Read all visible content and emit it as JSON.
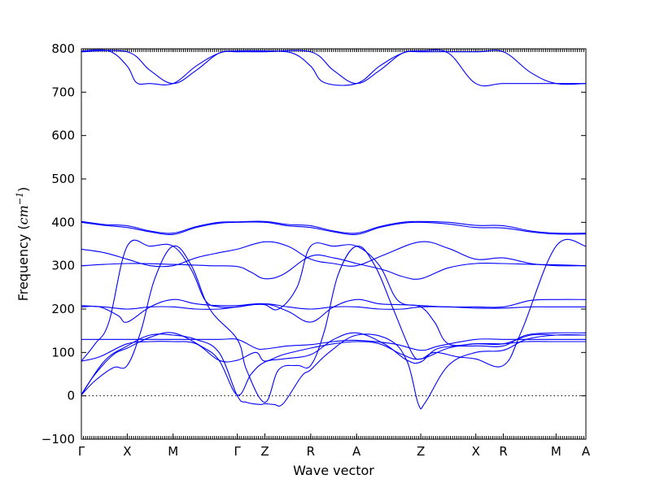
{
  "chart_data": {
    "type": "line",
    "xlabel": "Wave vector",
    "ylabel": "Frequency",
    "ylabel_unit_base": "cm",
    "ylabel_unit_exp": "−1",
    "ylim": [
      -100,
      800
    ],
    "yticks": [
      -100,
      0,
      100,
      200,
      300,
      400,
      500,
      600,
      700,
      800
    ],
    "zero_line": true,
    "grid": false,
    "line_color": "#0000ff",
    "xlim": [
      0,
      11
    ],
    "k_points": [
      {
        "label": "Γ",
        "x": 0
      },
      {
        "label": "X",
        "x": 1
      },
      {
        "label": "M",
        "x": 2
      },
      {
        "label": "Γ",
        "x": 3.4
      },
      {
        "label": "Z",
        "x": 4
      },
      {
        "label": "R",
        "x": 5
      },
      {
        "label": "A",
        "x": 6
      },
      {
        "label": "Z",
        "x": 7.4
      },
      {
        "label": "X",
        "x": 8.6
      },
      {
        "label": "R",
        "x": 9.2
      },
      {
        "label": "M",
        "x": 10.35
      },
      {
        "label": "A",
        "x": 11
      }
    ],
    "bands": [
      [
        [
          0,
          2
        ],
        [
          0.3,
          35
        ],
        [
          0.7,
          65
        ],
        [
          1,
          70
        ],
        [
          1.3,
          150
        ],
        [
          1.6,
          270
        ],
        [
          2,
          345
        ],
        [
          2.4,
          300
        ],
        [
          2.8,
          200
        ],
        [
          3.4,
          130
        ],
        [
          3.6,
          60
        ],
        [
          4,
          -15
        ],
        [
          4.3,
          60
        ],
        [
          4.7,
          70
        ],
        [
          5,
          70
        ],
        [
          5.3,
          150
        ],
        [
          5.6,
          280
        ],
        [
          6,
          345
        ],
        [
          6.4,
          300
        ],
        [
          6.8,
          200
        ],
        [
          7.2,
          100
        ],
        [
          7.4,
          85
        ],
        [
          7.7,
          100
        ],
        [
          8.2,
          90
        ],
        [
          8.6,
          85
        ],
        [
          9.2,
          70
        ],
        [
          9.6,
          150
        ],
        [
          10.35,
          345
        ],
        [
          11,
          345
        ]
      ],
      [
        [
          0,
          2
        ],
        [
          0.5,
          80
        ],
        [
          1,
          115
        ],
        [
          1.5,
          140
        ],
        [
          2,
          140
        ],
        [
          2.5,
          130
        ],
        [
          3,
          100
        ],
        [
          3.4,
          0
        ],
        [
          3.6,
          -15
        ],
        [
          3.9,
          -20
        ],
        [
          4,
          -18
        ],
        [
          4.2,
          -20
        ],
        [
          4.4,
          -18
        ],
        [
          4.8,
          45
        ],
        [
          5,
          60
        ],
        [
          5.4,
          100
        ],
        [
          6,
          140
        ],
        [
          6.7,
          130
        ],
        [
          7.1,
          80
        ],
        [
          7.35,
          -20
        ],
        [
          7.5,
          -15
        ],
        [
          8,
          70
        ],
        [
          8.6,
          100
        ],
        [
          9.2,
          105
        ],
        [
          9.7,
          130
        ],
        [
          10.35,
          140
        ],
        [
          11,
          140
        ]
      ],
      [
        [
          0,
          3
        ],
        [
          0.3,
          50
        ],
        [
          0.7,
          95
        ],
        [
          1,
          110
        ],
        [
          1.5,
          135
        ],
        [
          2,
          145
        ],
        [
          2.6,
          115
        ],
        [
          3,
          82
        ],
        [
          3.4,
          2
        ],
        [
          3.7,
          50
        ],
        [
          4,
          78
        ],
        [
          4.4,
          85
        ],
        [
          5,
          95
        ],
        [
          5.5,
          130
        ],
        [
          6,
          145
        ],
        [
          6.6,
          120
        ],
        [
          7.1,
          82
        ],
        [
          7.4,
          78
        ],
        [
          7.8,
          110
        ],
        [
          8.6,
          115
        ],
        [
          9.2,
          115
        ],
        [
          9.7,
          140
        ],
        [
          10.35,
          145
        ],
        [
          11,
          145
        ]
      ],
      [
        [
          0,
          80
        ],
        [
          0.4,
          90
        ],
        [
          1,
          120
        ],
        [
          1.5,
          125
        ],
        [
          2,
          125
        ],
        [
          2.5,
          120
        ],
        [
          3,
          82
        ],
        [
          3.4,
          82
        ],
        [
          3.8,
          100
        ],
        [
          4,
          80
        ],
        [
          4.4,
          95
        ],
        [
          5,
          110
        ],
        [
          5.5,
          120
        ],
        [
          6,
          125
        ],
        [
          6.5,
          120
        ],
        [
          7,
          95
        ],
        [
          7.4,
          85
        ],
        [
          8,
          110
        ],
        [
          8.6,
          120
        ],
        [
          9.2,
          120
        ],
        [
          9.7,
          125
        ],
        [
          10.35,
          125
        ],
        [
          11,
          125
        ]
      ],
      [
        [
          0,
          130
        ],
        [
          1,
          130
        ],
        [
          2,
          130
        ],
        [
          3,
          130
        ],
        [
          3.4,
          130
        ],
        [
          3.8,
          110
        ],
        [
          4,
          108
        ],
        [
          4.5,
          115
        ],
        [
          5,
          118
        ],
        [
          5.5,
          125
        ],
        [
          6,
          128
        ],
        [
          6.8,
          120
        ],
        [
          7.4,
          105
        ],
        [
          7.8,
          115
        ],
        [
          8.6,
          130
        ],
        [
          9.2,
          130
        ],
        [
          10,
          130
        ],
        [
          10.35,
          130
        ],
        [
          11,
          130
        ]
      ],
      [
        [
          0,
          80
        ],
        [
          0.3,
          120
        ],
        [
          0.6,
          170
        ],
        [
          1,
          345
        ],
        [
          1.5,
          345
        ],
        [
          2,
          345
        ],
        [
          2.4,
          290
        ],
        [
          2.7,
          220
        ],
        [
          3,
          205
        ],
        [
          3.4,
          205
        ],
        [
          3.7,
          210
        ],
        [
          4,
          210
        ],
        [
          4.3,
          200
        ],
        [
          4.7,
          250
        ],
        [
          5,
          345
        ],
        [
          5.5,
          345
        ],
        [
          6,
          345
        ],
        [
          6.5,
          300
        ],
        [
          6.9,
          220
        ],
        [
          7.4,
          205
        ],
        [
          7.7,
          170
        ],
        [
          8,
          120
        ],
        [
          8.6,
          120
        ],
        [
          9.2,
          120
        ],
        [
          9.8,
          140
        ],
        [
          10.35,
          140
        ],
        [
          11,
          140
        ]
      ],
      [
        [
          0,
          208
        ],
        [
          0.5,
          205
        ],
        [
          1,
          200
        ],
        [
          1.5,
          205
        ],
        [
          2,
          205
        ],
        [
          2.5,
          200
        ],
        [
          3,
          200
        ],
        [
          3.4,
          205
        ],
        [
          4,
          212
        ],
        [
          4.5,
          205
        ],
        [
          5,
          200
        ],
        [
          5.5,
          205
        ],
        [
          6,
          205
        ],
        [
          6.5,
          200
        ],
        [
          7,
          200
        ],
        [
          7.4,
          205
        ],
        [
          8,
          205
        ],
        [
          8.6,
          202
        ],
        [
          9.2,
          202
        ],
        [
          9.8,
          205
        ],
        [
          10.35,
          205
        ],
        [
          11,
          205
        ]
      ],
      [
        [
          0,
          205
        ],
        [
          0.4,
          205
        ],
        [
          0.8,
          185
        ],
        [
          1,
          170
        ],
        [
          1.5,
          205
        ],
        [
          2,
          222
        ],
        [
          2.5,
          212
        ],
        [
          3,
          208
        ],
        [
          3.4,
          208
        ],
        [
          4,
          212
        ],
        [
          4.5,
          195
        ],
        [
          5,
          170
        ],
        [
          5.5,
          205
        ],
        [
          6,
          222
        ],
        [
          6.5,
          212
        ],
        [
          7,
          210
        ],
        [
          7.4,
          208
        ],
        [
          8,
          205
        ],
        [
          8.6,
          205
        ],
        [
          9.2,
          205
        ],
        [
          9.8,
          220
        ],
        [
          10.35,
          222
        ],
        [
          11,
          222
        ]
      ],
      [
        [
          0,
          300
        ],
        [
          1,
          305
        ],
        [
          2,
          303
        ],
        [
          2.8,
          300
        ],
        [
          3.4,
          298
        ],
        [
          3.7,
          285
        ],
        [
          4,
          270
        ],
        [
          4.4,
          280
        ],
        [
          5,
          322
        ],
        [
          5.5,
          318
        ],
        [
          6,
          305
        ],
        [
          6.6,
          290
        ],
        [
          7,
          275
        ],
        [
          7.4,
          270
        ],
        [
          8,
          295
        ],
        [
          8.6,
          305
        ],
        [
          9.2,
          305
        ],
        [
          9.8,
          303
        ],
        [
          10.35,
          302
        ],
        [
          11,
          300
        ]
      ],
      [
        [
          0,
          338
        ],
        [
          0.5,
          330
        ],
        [
          1,
          315
        ],
        [
          1.5,
          300
        ],
        [
          2,
          300
        ],
        [
          2.5,
          318
        ],
        [
          3,
          330
        ],
        [
          3.4,
          338
        ],
        [
          4,
          355
        ],
        [
          4.5,
          345
        ],
        [
          5,
          315
        ],
        [
          5.5,
          305
        ],
        [
          6,
          300
        ],
        [
          6.6,
          325
        ],
        [
          7.4,
          355
        ],
        [
          8,
          340
        ],
        [
          8.6,
          315
        ],
        [
          9.2,
          318
        ],
        [
          9.8,
          305
        ],
        [
          10.35,
          300
        ],
        [
          11,
          300
        ]
      ],
      [
        [
          0,
          402
        ],
        [
          0.5,
          395
        ],
        [
          1,
          392
        ],
        [
          1.5,
          380
        ],
        [
          2,
          375
        ],
        [
          2.5,
          390
        ],
        [
          3,
          400
        ],
        [
          3.4,
          401
        ],
        [
          4,
          402
        ],
        [
          4.5,
          395
        ],
        [
          5,
          392
        ],
        [
          5.5,
          380
        ],
        [
          6,
          375
        ],
        [
          6.5,
          390
        ],
        [
          7,
          400
        ],
        [
          7.4,
          402
        ],
        [
          8,
          400
        ],
        [
          8.6,
          393
        ],
        [
          9.2,
          392
        ],
        [
          9.8,
          380
        ],
        [
          10.35,
          375
        ],
        [
          11,
          375
        ]
      ],
      [
        [
          0,
          400
        ],
        [
          0.5,
          393
        ],
        [
          1,
          388
        ],
        [
          1.5,
          378
        ],
        [
          2,
          372
        ],
        [
          2.5,
          388
        ],
        [
          3,
          398
        ],
        [
          3.4,
          400
        ],
        [
          4,
          400
        ],
        [
          4.5,
          392
        ],
        [
          5,
          388
        ],
        [
          5.5,
          378
        ],
        [
          6,
          372
        ],
        [
          6.5,
          388
        ],
        [
          7,
          398
        ],
        [
          7.4,
          400
        ],
        [
          8,
          396
        ],
        [
          8.6,
          388
        ],
        [
          9.2,
          387
        ],
        [
          9.8,
          378
        ],
        [
          10.35,
          373
        ],
        [
          11,
          373
        ]
      ],
      [
        [
          0,
          795
        ],
        [
          0.6,
          795
        ],
        [
          1,
          760
        ],
        [
          1.2,
          722
        ],
        [
          1.5,
          720
        ],
        [
          2,
          720
        ],
        [
          2.5,
          760
        ],
        [
          3,
          790
        ],
        [
          3.4,
          795
        ],
        [
          4,
          795
        ],
        [
          4.6,
          790
        ],
        [
          5,
          760
        ],
        [
          5.3,
          722
        ],
        [
          6,
          720
        ],
        [
          6.5,
          760
        ],
        [
          7,
          790
        ],
        [
          7.4,
          795
        ],
        [
          8,
          790
        ],
        [
          8.6,
          720
        ],
        [
          9.2,
          720
        ],
        [
          10,
          720
        ],
        [
          10.35,
          720
        ],
        [
          11,
          720
        ]
      ],
      [
        [
          0,
          793
        ],
        [
          1,
          793
        ],
        [
          1.5,
          750
        ],
        [
          2,
          720
        ],
        [
          2.5,
          750
        ],
        [
          3,
          790
        ],
        [
          3.4,
          793
        ],
        [
          4,
          793
        ],
        [
          5,
          793
        ],
        [
          5.5,
          750
        ],
        [
          6,
          720
        ],
        [
          6.5,
          750
        ],
        [
          7,
          790
        ],
        [
          7.4,
          793
        ],
        [
          8.6,
          793
        ],
        [
          9.2,
          793
        ],
        [
          9.8,
          745
        ],
        [
          10.35,
          720
        ],
        [
          11,
          720
        ]
      ]
    ]
  }
}
